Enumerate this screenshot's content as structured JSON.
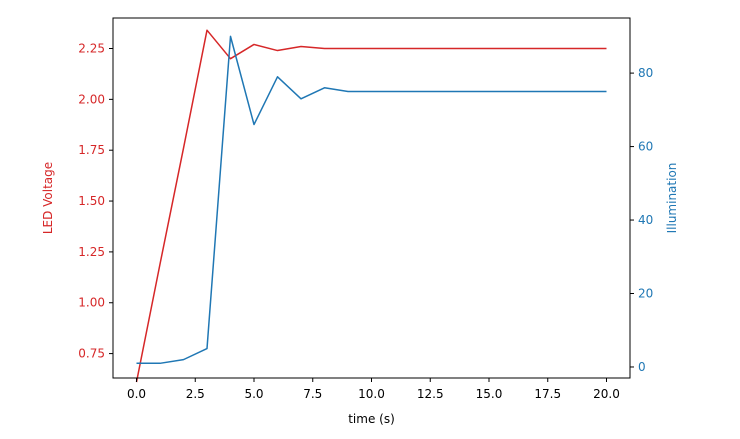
{
  "chart_data": {
    "type": "line",
    "xlabel": "time (s)",
    "x_ticks": [
      "0.0",
      "2.5",
      "5.0",
      "7.5",
      "10.0",
      "12.5",
      "15.0",
      "17.5",
      "20.0"
    ],
    "xlim": [
      -1.0,
      21.0
    ],
    "axes": [
      {
        "side": "left",
        "label": "LED Voltage",
        "color": "#d62728",
        "ylim": [
          0.63,
          2.4
        ],
        "ticks": [
          "0.75",
          "1.00",
          "1.25",
          "1.50",
          "1.75",
          "2.00",
          "2.25"
        ]
      },
      {
        "side": "right",
        "label": "Illumination",
        "color": "#1f77b4",
        "ylim": [
          -3,
          95
        ],
        "ticks": [
          "0",
          "20",
          "40",
          "60",
          "80"
        ]
      }
    ],
    "series": [
      {
        "axis": "left",
        "color": "#d62728",
        "x": [
          0,
          1,
          2,
          3,
          4,
          5,
          6,
          7,
          8,
          9,
          10,
          11,
          12,
          13,
          14,
          15,
          16,
          17,
          18,
          19,
          20
        ],
        "y": [
          0.61,
          1.19,
          1.76,
          2.34,
          2.2,
          2.27,
          2.24,
          2.26,
          2.25,
          2.25,
          2.25,
          2.25,
          2.25,
          2.25,
          2.25,
          2.25,
          2.25,
          2.25,
          2.25,
          2.25,
          2.25
        ]
      },
      {
        "axis": "right",
        "color": "#1f77b4",
        "x": [
          0,
          1,
          2,
          3,
          4,
          5,
          6,
          7,
          8,
          9,
          10,
          11,
          12,
          13,
          14,
          15,
          16,
          17,
          18,
          19,
          20
        ],
        "y": [
          1,
          1,
          2,
          5,
          90,
          66,
          79,
          73,
          76,
          75,
          75,
          75,
          75,
          75,
          75,
          75,
          75,
          75,
          75,
          75,
          75
        ]
      }
    ]
  }
}
